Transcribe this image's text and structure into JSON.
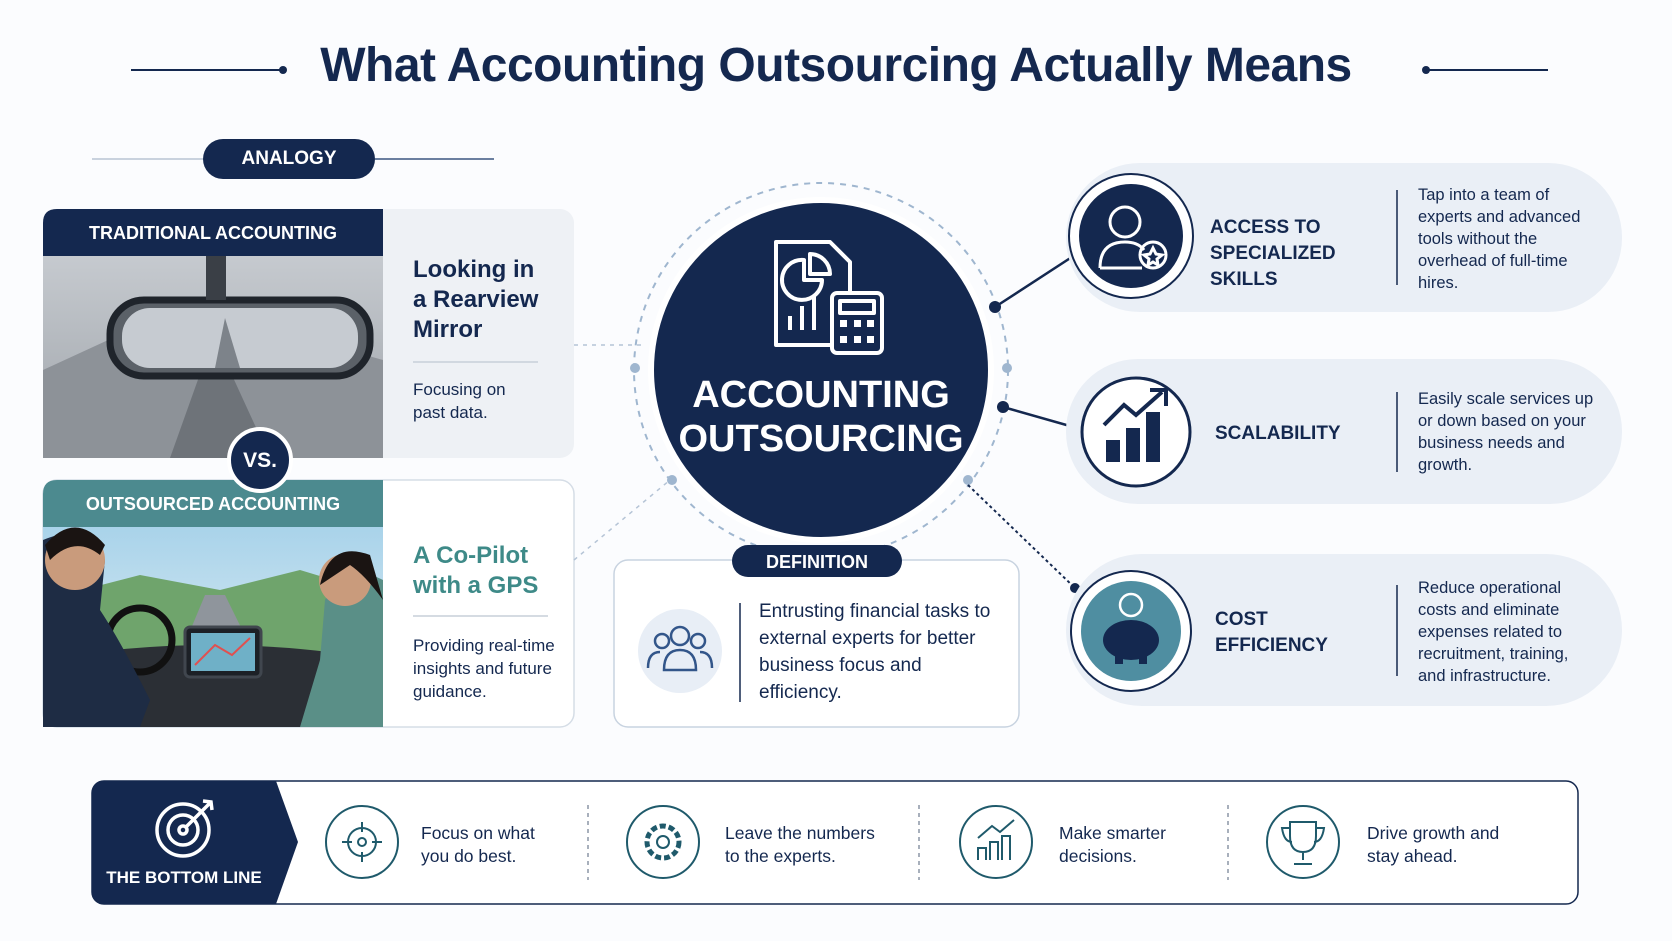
{
  "header": {
    "title": "What Accounting Outsourcing Actually Means"
  },
  "analogy": {
    "label": "ANALOGY",
    "vs": "VS.",
    "traditional": {
      "header": "TRADITIONAL ACCOUNTING",
      "title": "Looking in a Rearview Mirror",
      "description": "Focusing on past data."
    },
    "outsourced": {
      "header": "OUTSOURCED ACCOUNTING",
      "title": "A Co-Pilot with a GPS",
      "description": "Providing real-time insights and future guidance."
    }
  },
  "center": {
    "title": "ACCOUNTING OUTSOURCING"
  },
  "definition": {
    "label": "DEFINITION",
    "text": "Entrusting financial tasks to external experts for better business focus and efficiency."
  },
  "benefits": [
    {
      "title": "ACCESS TO SPECIALIZED SKILLS",
      "text": "Tap into a team of experts and advanced tools without the overhead of full-time hires."
    },
    {
      "title": "SCALABILITY",
      "text": "Easily scale services up or down based on your business needs and growth."
    },
    {
      "title": "COST EFFICIENCY",
      "text": "Reduce operational costs and eliminate expenses related to recruitment, training, and infrastructure."
    }
  ],
  "bottom_line": {
    "label": "THE BOTTOM LINE",
    "items": [
      "Focus on what you do best.",
      "Leave the numbers to the experts.",
      "Make smarter decisions.",
      "Drive growth and stay ahead."
    ]
  }
}
